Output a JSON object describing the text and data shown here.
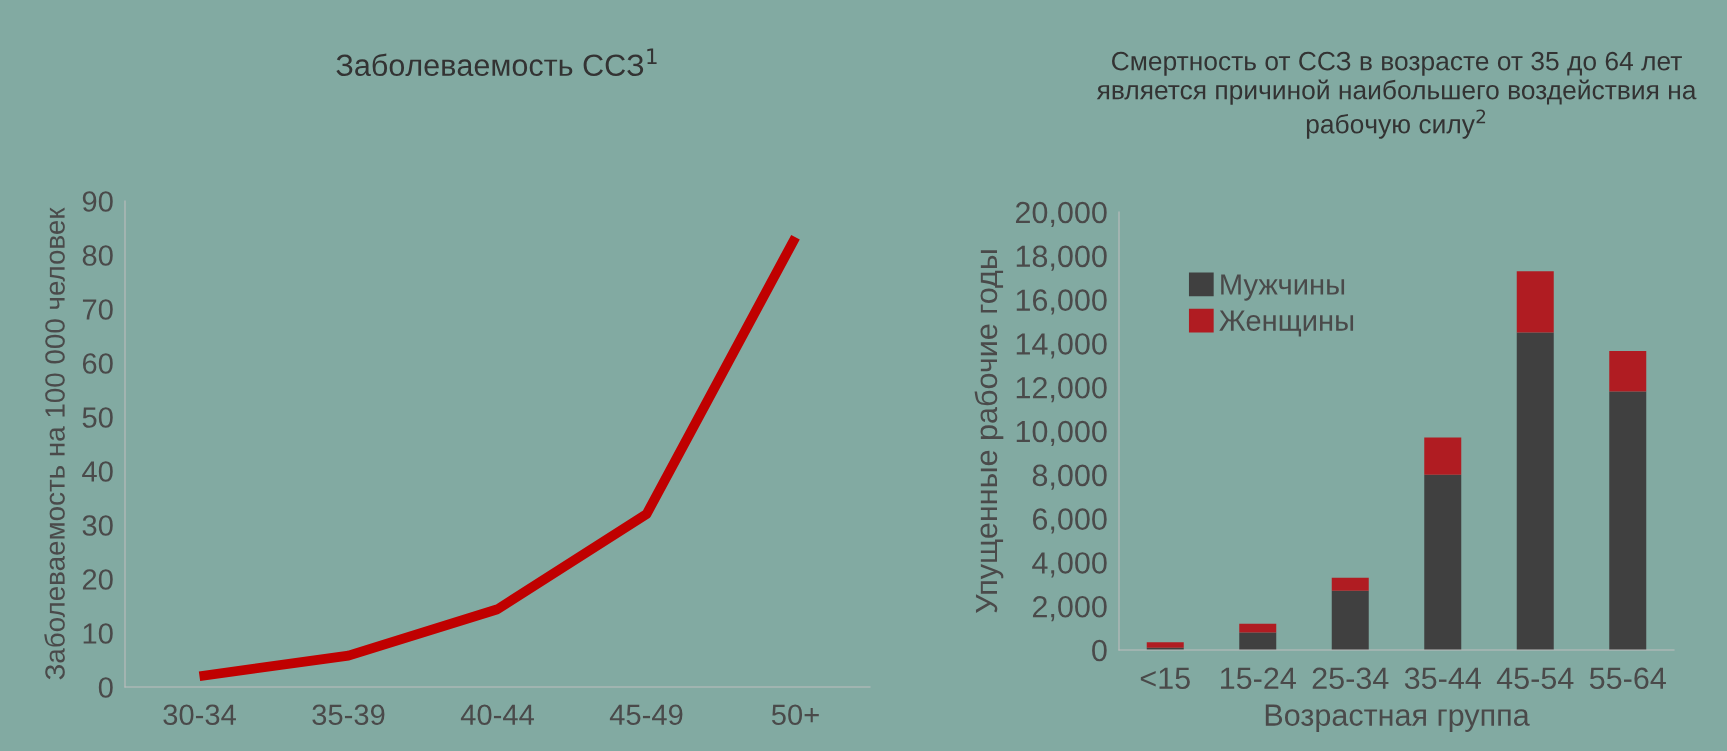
{
  "chart_data": [
    {
      "type": "line",
      "title": "Заболеваемость ССЗ$^{1}$",
      "ylabel": "Заболеваемость на 100 000 человек",
      "categories": [
        "30-34",
        "35-39",
        "40-44",
        "45-49",
        "50+"
      ],
      "series": [
        {
          "color": "#c00000",
          "values": [
            2,
            5.8,
            14.4,
            32,
            83.3
          ]
        }
      ],
      "ylim": [
        0,
        90
      ],
      "yticks": [
        0,
        10,
        20,
        30,
        40,
        50,
        60,
        70,
        80,
        90
      ],
      "grid": false,
      "legend": false,
      "marker": "none",
      "line_style": "solid"
    },
    {
      "type": "bar",
      "title": "Смертность от ССЗ в возрасте от 35 до 64 лет является причиной наибольшего воздействия на рабочую силу$^{2}$",
      "xlabel": "Возрастная группа",
      "ylabel": "Упущенные рабочие годы",
      "categories": [
        "<15",
        "15-24",
        "25-34",
        "35-44",
        "45-54",
        "55-64"
      ],
      "stacked": true,
      "series": [
        {
          "name": "Мужчины",
          "color": "#404040",
          "values": [
            100,
            800,
            2700,
            8000,
            14500,
            11800
          ]
        },
        {
          "name": "Женщины",
          "color": "#b01c22",
          "values": [
            250,
            400,
            600,
            1700,
            2800,
            1850
          ]
        }
      ],
      "ylim": [
        0,
        20000
      ],
      "yticks": [
        0,
        {
          "value": 2000,
          "label": "2,000"
        },
        {
          "value": 4000,
          "label": "4,000"
        },
        {
          "value": 6000,
          "label": "6,000"
        },
        {
          "value": 8000,
          "label": "8,000"
        },
        {
          "value": 10000,
          "label": "10,000"
        },
        {
          "value": 12000,
          "label": "12,000"
        },
        {
          "value": 14000,
          "label": "14,000"
        },
        {
          "value": 16000,
          "label": "16,000"
        },
        {
          "value": 18000,
          "label": "18,000"
        },
        {
          "value": 20000,
          "label": "20,000"
        }
      ],
      "grid": false,
      "legend": "top left"
    }
  ]
}
